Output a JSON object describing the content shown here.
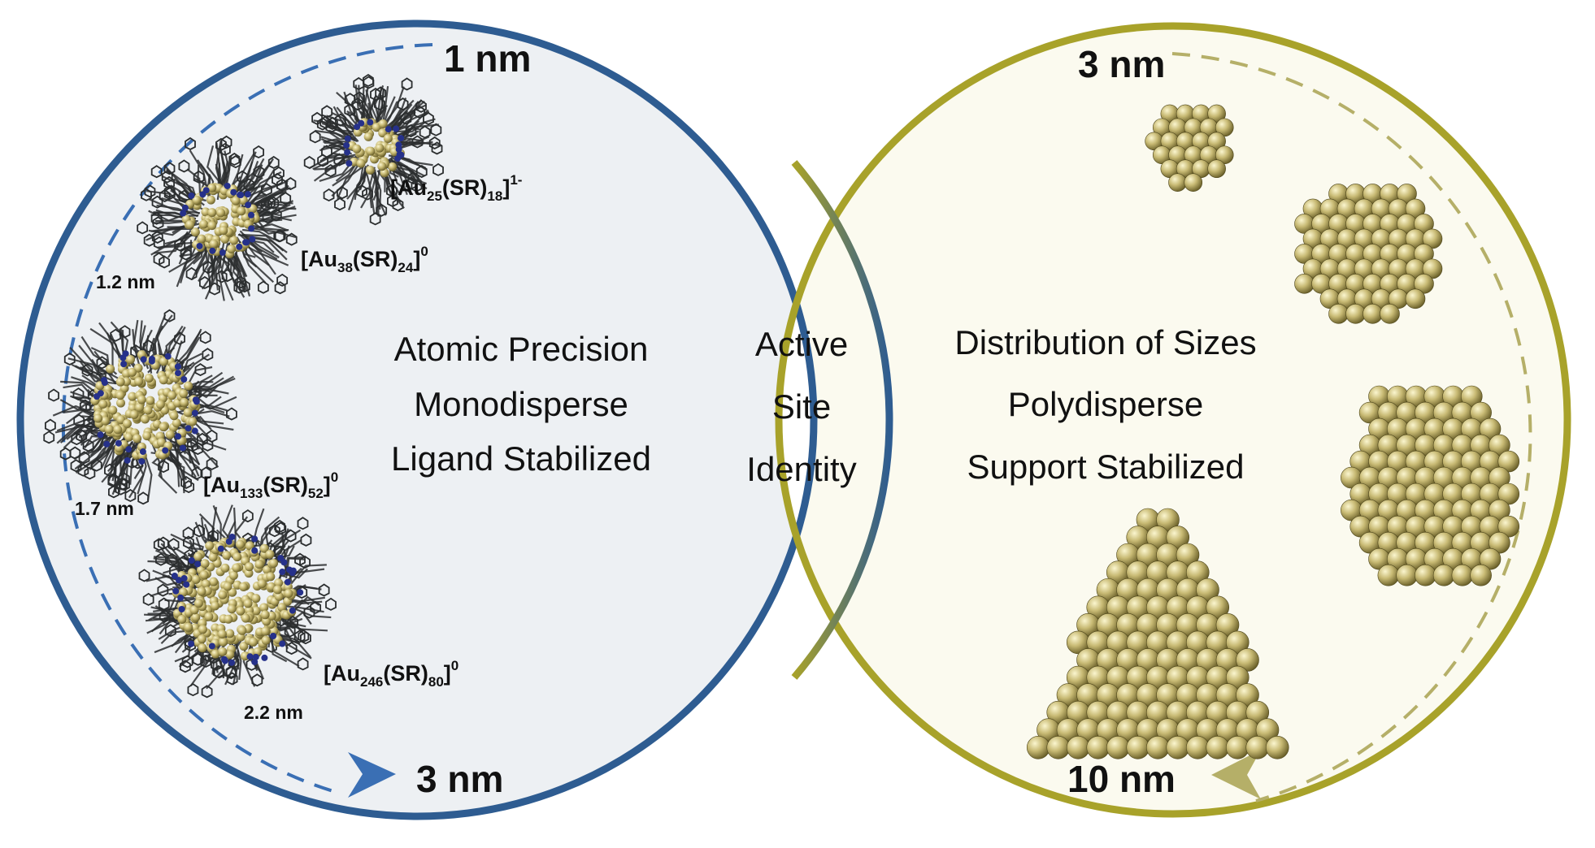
{
  "left_circle": {
    "start_label": "1 nm",
    "end_label": "3 nm",
    "description": [
      "Atomic Precision",
      "Monodisperse",
      "Ligand Stabilized"
    ],
    "clusters": [
      {
        "formula": {
          "base": "[Au",
          "n": "25",
          "mid": "(SR)",
          "m": "18",
          "close": "]",
          "charge": "1-"
        },
        "size": ""
      },
      {
        "formula": {
          "base": "[Au",
          "n": "38",
          "mid": "(SR)",
          "m": "24",
          "close": "]",
          "charge": "0"
        },
        "size": "1.2 nm"
      },
      {
        "formula": {
          "base": "[Au",
          "n": "133",
          "mid": "(SR)",
          "m": "52",
          "close": "]",
          "charge": "0"
        },
        "size": "1.7 nm"
      },
      {
        "formula": {
          "base": "[Au",
          "n": "246",
          "mid": "(SR)",
          "m": "80",
          "close": "]",
          "charge": "0"
        },
        "size": "2.2 nm"
      }
    ]
  },
  "overlap": {
    "lines": [
      "Active",
      "Site",
      "Identity"
    ]
  },
  "right_circle": {
    "start_label": "3 nm",
    "end_label": "10 nm",
    "description": [
      "Distribution of Sizes",
      "Polydisperse",
      "Support Stabilized"
    ]
  },
  "colors": {
    "left_ring": "#2e5c91",
    "left_fill": "#edf0f3",
    "left_arrow": "#3a6fb4",
    "right_ring": "#a8a22a",
    "right_fill": "#fbfaef",
    "right_arrow": "#b5af68",
    "gold": "#c9bd79",
    "ligand": "#2b2e2f",
    "sulfur": "#26318a"
  }
}
